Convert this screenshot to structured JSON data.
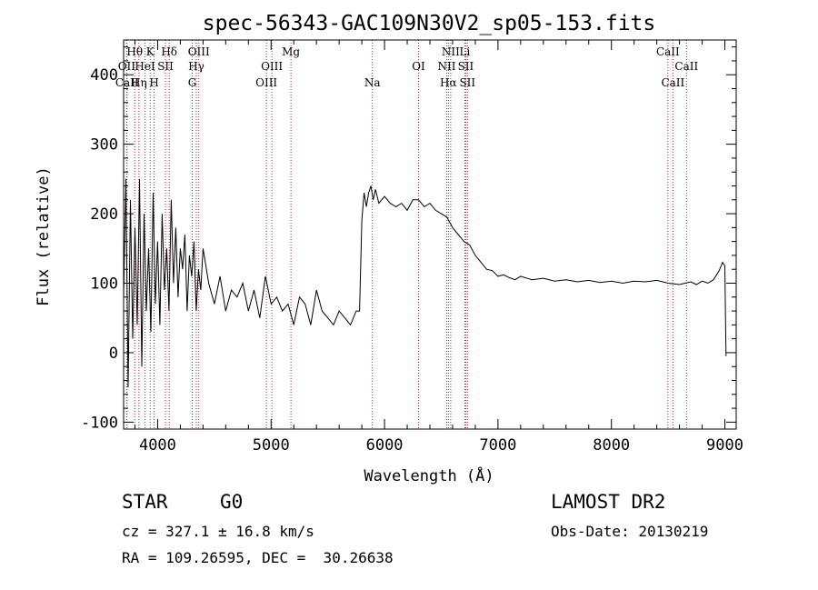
{
  "header": {
    "title": "spec-56343-GAC109N30V2_sp05-153.fits"
  },
  "info": {
    "object_class": "STAR",
    "subclass": "G0",
    "survey": "LAMOST DR2",
    "redshift_text": "cz = 327.1 ± 16.8 km/s",
    "obs_date_text": "Obs-Date: 20130219",
    "coords_text": "RA = 109.26595, DEC =  30.26638"
  },
  "colors": {
    "spectrum": "#000000",
    "line_marker": "#a0303a",
    "axes": "#000000",
    "background": "#ffffff"
  },
  "chart_data": {
    "type": "line",
    "title": "spec-56343-GAC109N30V2_sp05-153.fits",
    "xlabel": "Wavelength (Å)",
    "ylabel": "Flux (relative)",
    "xlim": [
      3700,
      9100
    ],
    "ylim": [
      -110,
      450
    ],
    "x_ticks": [
      4000,
      5000,
      6000,
      7000,
      8000,
      9000
    ],
    "y_ticks": [
      -100,
      0,
      100,
      200,
      300,
      400
    ],
    "grid": false,
    "series": [
      {
        "x": [
          3700,
          3720,
          3740,
          3760,
          3780,
          3800,
          3820,
          3840,
          3860,
          3880,
          3900,
          3920,
          3940,
          3960,
          3980,
          4000,
          4020,
          4040,
          4060,
          4080,
          4100,
          4120,
          4140,
          4160,
          4180,
          4200,
          4220,
          4240,
          4260,
          4280,
          4300,
          4320,
          4340,
          4360,
          4380,
          4400,
          4450,
          4500,
          4550,
          4600,
          4650,
          4700,
          4750,
          4800,
          4850,
          4900,
          4950,
          5000,
          5050,
          5100,
          5150,
          5200,
          5250,
          5300,
          5350,
          5400,
          5450,
          5500,
          5550,
          5600,
          5650,
          5700,
          5750,
          5780,
          5800,
          5820,
          5840,
          5860,
          5880,
          5900,
          5920,
          5950,
          6000,
          6050,
          6100,
          6150,
          6200,
          6250,
          6300,
          6350,
          6400,
          6450,
          6500,
          6550,
          6600,
          6650,
          6700,
          6750,
          6800,
          6850,
          6900,
          6950,
          7000,
          7050,
          7100,
          7150,
          7200,
          7300,
          7400,
          7500,
          7600,
          7700,
          7800,
          7900,
          8000,
          8100,
          8200,
          8300,
          8400,
          8500,
          8600,
          8650,
          8700,
          8750,
          8800,
          8850,
          8900,
          8950,
          8980,
          9000,
          9010
        ],
        "y": [
          80,
          250,
          -50,
          220,
          20,
          180,
          40,
          250,
          -20,
          200,
          60,
          150,
          30,
          230,
          70,
          160,
          40,
          200,
          90,
          150,
          60,
          220,
          100,
          180,
          80,
          150,
          120,
          170,
          60,
          140,
          110,
          160,
          60,
          120,
          90,
          150,
          100,
          70,
          110,
          60,
          90,
          80,
          100,
          60,
          90,
          50,
          110,
          70,
          80,
          60,
          70,
          40,
          80,
          70,
          40,
          90,
          60,
          50,
          40,
          60,
          50,
          40,
          60,
          60,
          190,
          230,
          210,
          230,
          240,
          220,
          235,
          215,
          225,
          215,
          210,
          215,
          205,
          220,
          220,
          210,
          215,
          205,
          200,
          195,
          180,
          170,
          160,
          155,
          140,
          130,
          120,
          118,
          110,
          112,
          108,
          105,
          110,
          105,
          107,
          103,
          105,
          102,
          104,
          101,
          103,
          100,
          103,
          102,
          104,
          100,
          98,
          100,
          102,
          98,
          103,
          100,
          105,
          118,
          130,
          125,
          -5
        ]
      }
    ],
    "annotations": [
      {
        "label": "Hθ",
        "x": 3798,
        "row": 1
      },
      {
        "label": "OII",
        "x": 3727,
        "row": 2
      },
      {
        "label": "CaII",
        "x": 3730,
        "row": 3
      },
      {
        "label": "K",
        "x": 3934,
        "row": 1
      },
      {
        "label": "HeI",
        "x": 3889,
        "row": 2
      },
      {
        "label": "Hη",
        "x": 3835,
        "row": 3
      },
      {
        "label": "SII",
        "x": 4069,
        "row": 2
      },
      {
        "label": "H",
        "x": 3969,
        "row": 3
      },
      {
        "label": "Hδ",
        "x": 4102,
        "row": 1
      },
      {
        "label": "OIII",
        "x": 4363,
        "row": 1
      },
      {
        "label": "Hγ",
        "x": 4341,
        "row": 2
      },
      {
        "label": "G",
        "x": 4305,
        "row": 3
      },
      {
        "label": "Mg",
        "x": 5175,
        "row": 1
      },
      {
        "label": "OIII",
        "x": 5007,
        "row": 2
      },
      {
        "label": "OIII",
        "x": 4959,
        "row": 3
      },
      {
        "label": "Na",
        "x": 5893,
        "row": 3
      },
      {
        "label": "OI",
        "x": 6300,
        "row": 2
      },
      {
        "label": "NII",
        "x": 6583,
        "row": 1
      },
      {
        "label": "NII",
        "x": 6548,
        "row": 2
      },
      {
        "label": "Hα",
        "x": 6563,
        "row": 3
      },
      {
        "label": "Li",
        "x": 6708,
        "row": 1
      },
      {
        "label": "SII",
        "x": 6716,
        "row": 2
      },
      {
        "label": "SII",
        "x": 6731,
        "row": 3
      },
      {
        "label": "CaII",
        "x": 8498,
        "row": 1
      },
      {
        "label": "CaII",
        "x": 8662,
        "row": 2
      },
      {
        "label": "CaII",
        "x": 8542,
        "row": 3
      }
    ]
  }
}
